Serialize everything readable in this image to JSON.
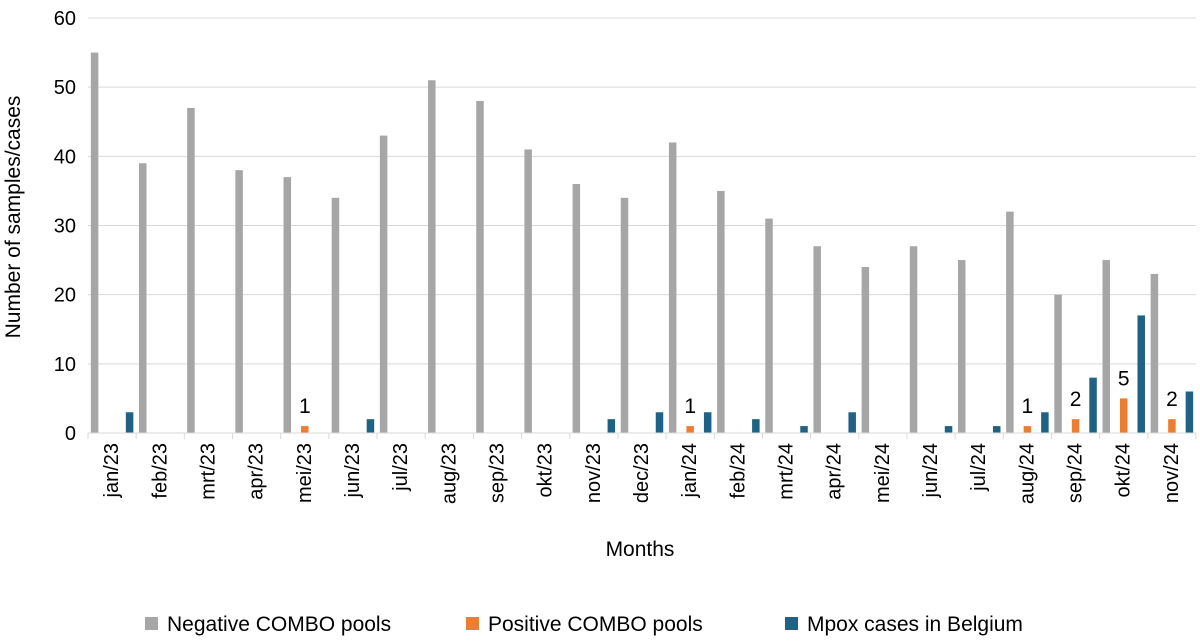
{
  "chart_data": {
    "type": "bar",
    "categories": [
      "jan/23",
      "feb/23",
      "mrt/23",
      "apr/23",
      "mei/23",
      "jun/23",
      "jul/23",
      "aug/23",
      "sep/23",
      "okt/23",
      "nov/23",
      "dec/23",
      "jan/24",
      "feb/24",
      "mrt/24",
      "apr/24",
      "mei/24",
      "jun/24",
      "jul/24",
      "aug/24",
      "sep/24",
      "okt/24",
      "nov/24"
    ],
    "series": [
      {
        "name": "Negative COMBO pools",
        "color": "#a6a6a6",
        "values": [
          55,
          39,
          47,
          38,
          37,
          34,
          43,
          51,
          48,
          41,
          36,
          34,
          42,
          35,
          31,
          27,
          24,
          27,
          25,
          32,
          20,
          25,
          23
        ]
      },
      {
        "name": "Positive COMBO pools",
        "color": "#ed7d31",
        "values": [
          0,
          0,
          0,
          0,
          1,
          0,
          0,
          0,
          0,
          0,
          0,
          0,
          1,
          0,
          0,
          0,
          0,
          0,
          0,
          1,
          2,
          5,
          2
        ]
      },
      {
        "name": "Mpox cases in Belgium",
        "color": "#1f6283",
        "values": [
          3,
          0,
          0,
          0,
          0,
          2,
          0,
          0,
          0,
          0,
          2,
          3,
          3,
          2,
          1,
          3,
          0,
          1,
          1,
          3,
          8,
          17,
          6
        ]
      }
    ],
    "data_labels": [
      {
        "category": "mei/23",
        "text": "1"
      },
      {
        "category": "jan/24",
        "text": "1"
      },
      {
        "category": "aug/24",
        "text": "1"
      },
      {
        "category": "sep/24",
        "text": "2"
      },
      {
        "category": "okt/24",
        "text": "5"
      },
      {
        "category": "nov/24",
        "text": "2"
      }
    ],
    "ylim": [
      0,
      60
    ],
    "yticks": [
      0,
      10,
      20,
      30,
      40,
      50,
      60
    ],
    "xlabel": "Months",
    "ylabel": "Number of samples/cases",
    "grid": true,
    "legend": "bottom"
  }
}
